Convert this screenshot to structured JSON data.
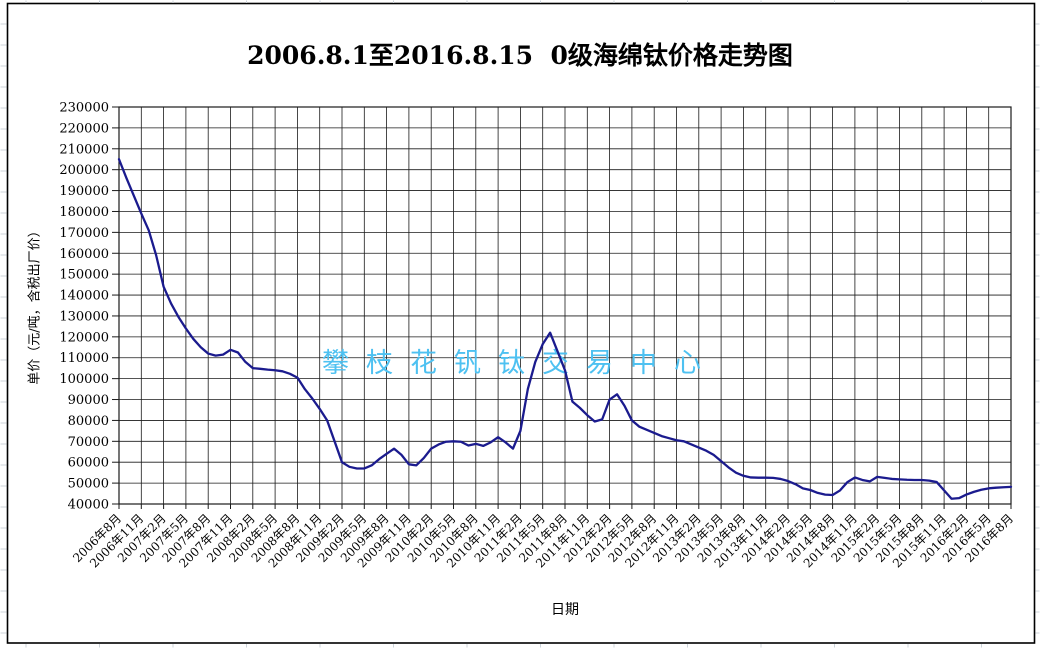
{
  "title": "2006.8.1至2016.8.15  0级海绵钛价格走势图",
  "watermark": "攀枝花钒钛交易中心",
  "colors": {
    "line": "#1b1b8e",
    "watermark": "#4ec1f1",
    "grid": "#1a1a1a",
    "frame": "#000000",
    "background": "#ffffff",
    "worksheet_grid": "#ccd3da"
  },
  "chart_data": {
    "type": "line",
    "title": "2006.8.1至2016.8.15  0级海绵钛价格走势图",
    "xlabel": "日期",
    "ylabel": "单价（元/吨，含税出厂价）",
    "ylim": [
      40000,
      230000
    ],
    "ytick_step": 10000,
    "grid": true,
    "legend_position": "none",
    "x_unit": "month",
    "x_tick_interval_months": 3,
    "x_tick_labels": [
      "2006年8月",
      "2006年11月",
      "2007年2月",
      "2007年5月",
      "2007年8月",
      "2007年11月",
      "2008年2月",
      "2008年5月",
      "2008年8月",
      "2008年11月",
      "2009年2月",
      "2009年5月",
      "2009年8月",
      "2009年11月",
      "2010年2月",
      "2010年5月",
      "2010年8月",
      "2010年11月",
      "2011年2月",
      "2011年5月",
      "2011年8月",
      "2011年11月",
      "2012年2月",
      "2012年5月",
      "2012年8月",
      "2012年11月",
      "2013年2月",
      "2013年5月",
      "2013年8月",
      "2013年11月",
      "2014年2月",
      "2014年5月",
      "2014年8月",
      "2014年11月",
      "2015年2月",
      "2015年5月",
      "2015年8月",
      "2015年11月",
      "2016年2月",
      "2016年5月",
      "2016年8月"
    ],
    "y_tick_labels": [
      "230000",
      "220000",
      "210000",
      "200000",
      "190000",
      "180000",
      "170000",
      "160000",
      "150000",
      "140000",
      "130000",
      "120000",
      "110000",
      "100000",
      "90000",
      "80000",
      "70000",
      "60000",
      "50000",
      "40000"
    ],
    "series": [
      {
        "name": "0级海绵钛价格",
        "color": "#1b1b8e",
        "x_start": "2006年8月",
        "x_end": "2016年8月",
        "values": [
          205000,
          196000,
          187500,
          179000,
          171000,
          159000,
          144000,
          136000,
          129500,
          124000,
          119000,
          115000,
          112000,
          111000,
          111500,
          113800,
          112500,
          108000,
          105000,
          104700,
          104300,
          104000,
          103500,
          102300,
          100500,
          95000,
          90500,
          85500,
          80000,
          70000,
          60000,
          57800,
          57000,
          57000,
          58500,
          61500,
          64000,
          66500,
          63500,
          59000,
          58500,
          62000,
          66500,
          68500,
          69800,
          70000,
          69800,
          68000,
          68800,
          67800,
          69500,
          72000,
          69500,
          66500,
          75000,
          95000,
          108000,
          116500,
          122000,
          113000,
          104000,
          89000,
          86000,
          82500,
          79500,
          80500,
          90000,
          92500,
          87000,
          80000,
          77000,
          75500,
          74000,
          72500,
          71500,
          70500,
          70000,
          68500,
          67000,
          65500,
          63500,
          60500,
          57500,
          55000,
          53500,
          52700,
          52600,
          52600,
          52500,
          52000,
          51000,
          49500,
          47500,
          46700,
          45300,
          44500,
          44300,
          46500,
          50500,
          52700,
          51500,
          50800,
          53000,
          52500,
          52000,
          51800,
          51600,
          51500,
          51500,
          51200,
          50500,
          46500,
          42500,
          42800,
          44500,
          45800,
          46800,
          47500,
          47800,
          48000,
          48200
        ]
      }
    ]
  }
}
